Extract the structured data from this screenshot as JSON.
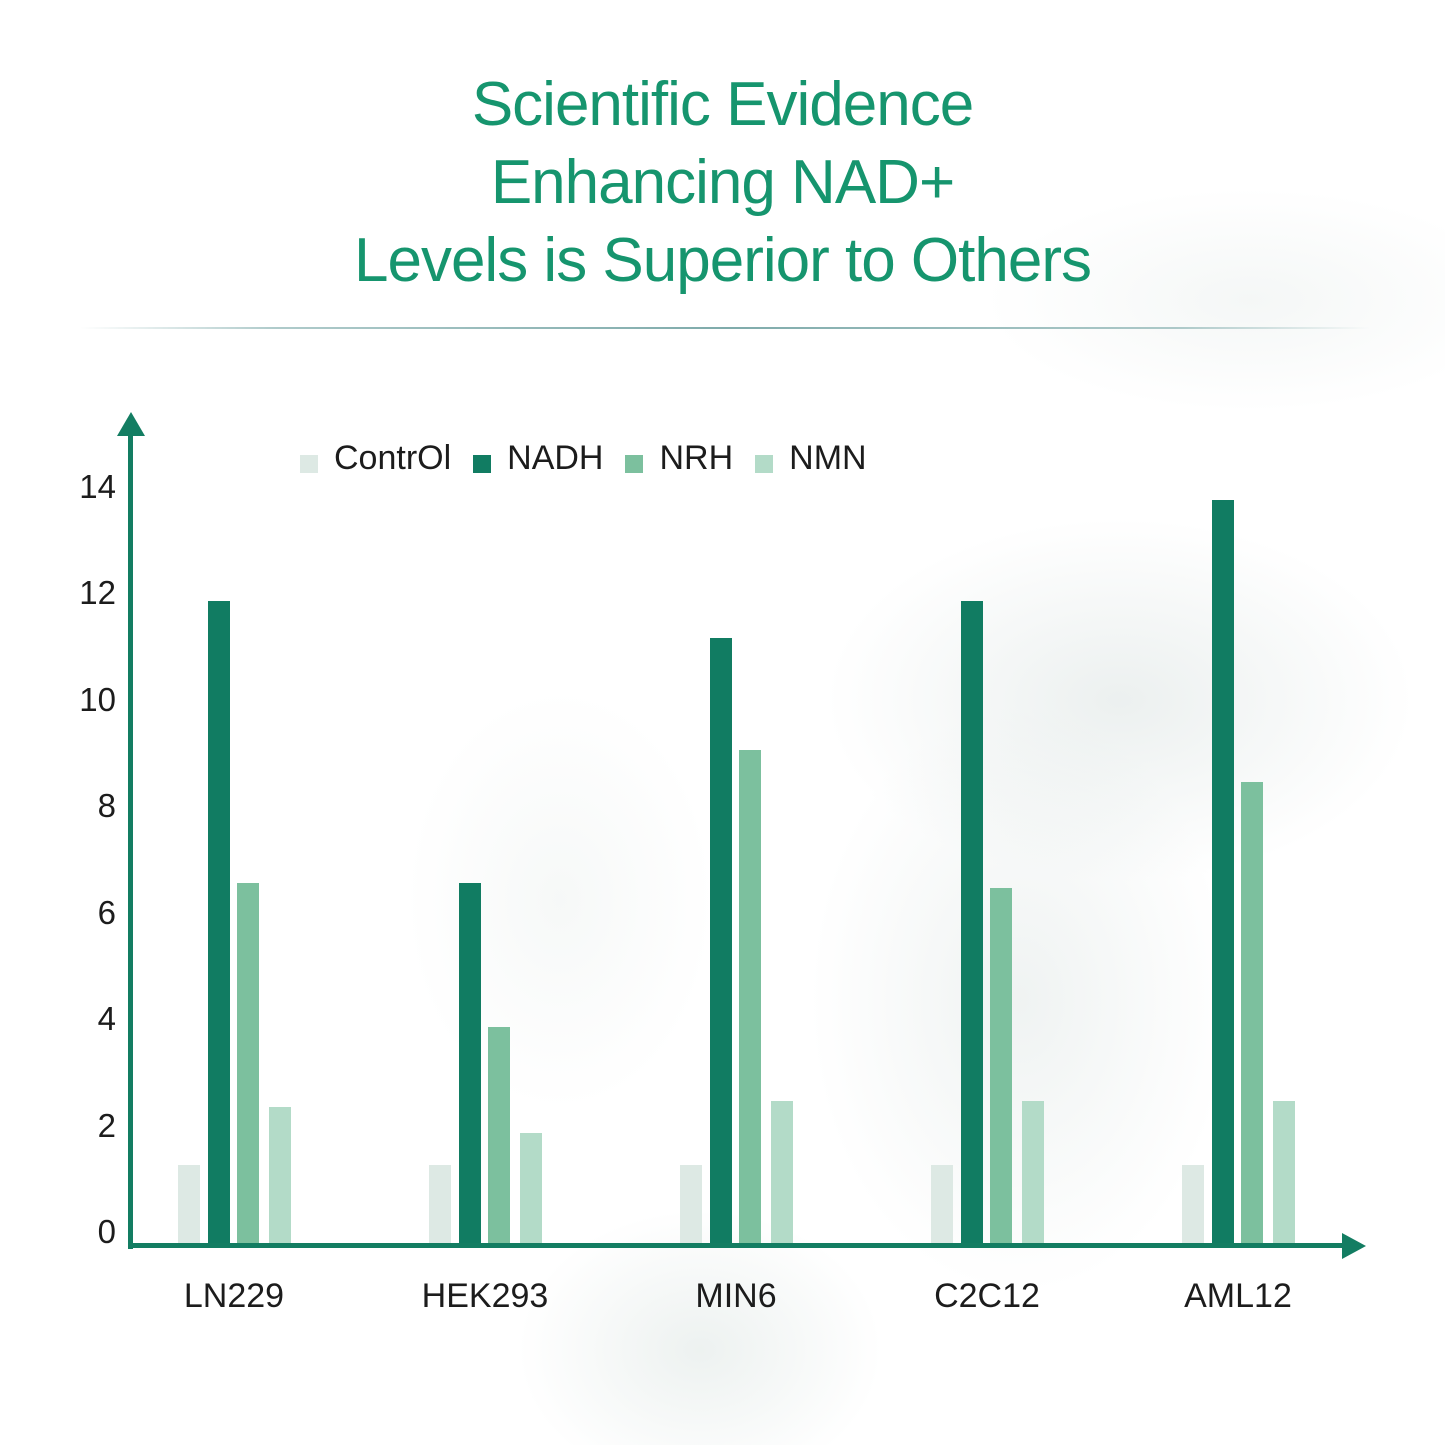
{
  "title": {
    "lines": [
      "Scientific Evidence",
      "Enhancing NAD+",
      "Levels is Superior to Others"
    ],
    "color": "#16956e"
  },
  "legend": [
    {
      "label": "ContrOl",
      "color": "#dde9e4"
    },
    {
      "label": "NADH",
      "color": "#117c62"
    },
    {
      "label": "NRH",
      "color": "#7cc09e"
    },
    {
      "label": "NMN",
      "color": "#b3dbc8"
    }
  ],
  "y_axis": {
    "ticks": [
      "14",
      "12",
      "10",
      "8",
      "6",
      "4",
      "2",
      "0"
    ]
  },
  "x_axis": {
    "categories": [
      "LN229",
      "HEK293",
      "MIN6",
      "C2C12",
      "AML12"
    ]
  },
  "chart_data": {
    "type": "bar",
    "title": "Scientific Evidence Enhancing NAD+ Levels is Superior to Others",
    "xlabel": "",
    "ylabel": "",
    "categories": [
      "LN229",
      "HEK293",
      "MIN6",
      "C2C12",
      "AML12"
    ],
    "series": [
      {
        "name": "ContrOl",
        "color": "#dde9e4",
        "values": [
          1.5,
          1.5,
          1.5,
          1.5,
          1.5
        ]
      },
      {
        "name": "NADH",
        "color": "#117c62",
        "values": [
          12.1,
          6.8,
          11.4,
          12.1,
          14.0
        ]
      },
      {
        "name": "NRH",
        "color": "#7cc09e",
        "values": [
          6.8,
          4.1,
          9.3,
          6.7,
          8.7
        ]
      },
      {
        "name": "NMN",
        "color": "#b3dbc8",
        "values": [
          2.6,
          2.1,
          2.7,
          2.7,
          2.7
        ]
      }
    ],
    "ylim": [
      0,
      15
    ],
    "yticks": [
      0,
      2,
      4,
      6,
      8,
      10,
      12,
      14
    ],
    "grid": false,
    "legend_position": "top"
  }
}
